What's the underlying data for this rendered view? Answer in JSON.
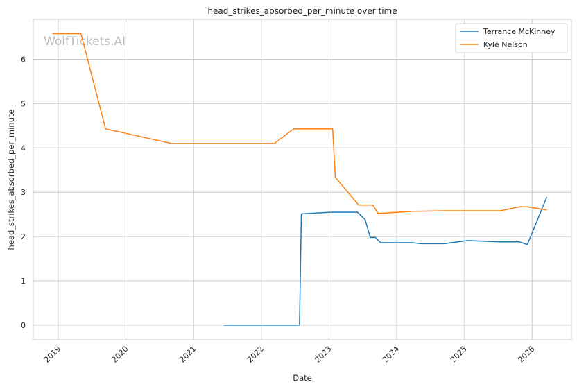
{
  "chart_data": {
    "type": "line",
    "title": "head_strikes_absorbed_per_minute over time",
    "xlabel": "Date",
    "ylabel": "head_strikes_absorbed_per_minute",
    "watermark": "WolfTickets.AI",
    "xlim": [
      "2018-08-20",
      "2026-08-01"
    ],
    "ylim": [
      -0.33,
      6.9
    ],
    "x_ticks": [
      "2019-01-01",
      "2020-01-01",
      "2021-01-01",
      "2022-01-01",
      "2023-01-01",
      "2024-01-01",
      "2025-01-01",
      "2026-01-01"
    ],
    "x_tick_labels": [
      "2019",
      "2020",
      "2021",
      "2022",
      "2023",
      "2024",
      "2025",
      "2026"
    ],
    "y_ticks": [
      0,
      1,
      2,
      3,
      4,
      5,
      6
    ],
    "y_tick_labels": [
      "0",
      "1",
      "2",
      "3",
      "4",
      "5",
      "6"
    ],
    "grid": true,
    "legend_position": "top-right",
    "series": [
      {
        "name": "Terrance McKinney",
        "color": "#1f77b4",
        "points": [
          [
            "2021-06-12",
            0.0
          ],
          [
            "2022-07-26",
            0.0
          ],
          [
            "2022-08-05",
            2.51
          ],
          [
            "2023-01-14",
            2.55
          ],
          [
            "2023-06-03",
            2.55
          ],
          [
            "2023-07-15",
            2.38
          ],
          [
            "2023-08-12",
            1.98
          ],
          [
            "2023-09-09",
            1.98
          ],
          [
            "2023-10-07",
            1.86
          ],
          [
            "2024-03-30",
            1.86
          ],
          [
            "2024-05-11",
            1.84
          ],
          [
            "2024-09-14",
            1.84
          ],
          [
            "2025-01-18",
            1.91
          ],
          [
            "2025-07-12",
            1.88
          ],
          [
            "2025-10-25",
            1.88
          ],
          [
            "2025-12-06",
            1.82
          ],
          [
            "2026-03-21",
            2.89
          ]
        ]
      },
      {
        "name": "Kyle Nelson",
        "color": "#ff7f0e",
        "points": [
          [
            "2018-12-01",
            6.58
          ],
          [
            "2019-05-04",
            6.58
          ],
          [
            "2019-09-14",
            4.43
          ],
          [
            "2020-09-05",
            4.1
          ],
          [
            "2022-03-12",
            4.1
          ],
          [
            "2022-06-25",
            4.43
          ],
          [
            "2023-01-21",
            4.43
          ],
          [
            "2023-02-04",
            3.34
          ],
          [
            "2023-06-10",
            2.71
          ],
          [
            "2023-08-26",
            2.71
          ],
          [
            "2023-09-23",
            2.52
          ],
          [
            "2024-03-30",
            2.57
          ],
          [
            "2024-09-14",
            2.58
          ],
          [
            "2025-07-12",
            2.58
          ],
          [
            "2025-10-25",
            2.67
          ],
          [
            "2025-12-06",
            2.67
          ],
          [
            "2026-03-21",
            2.6
          ]
        ]
      }
    ]
  }
}
